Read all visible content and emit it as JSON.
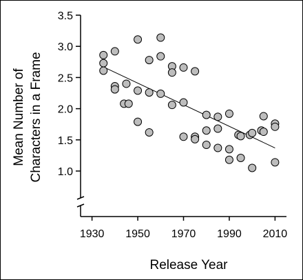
{
  "chart_data": {
    "type": "scatter",
    "title": "",
    "xlabel": "Release Year",
    "ylabel_lines": [
      "Mean Number of",
      "Characters in a Frame"
    ],
    "xlim": [
      1925,
      2015
    ],
    "ylim": [
      0.85,
      3.5
    ],
    "y_axis_break": true,
    "xticks": [
      "1930",
      "1950",
      "1970",
      "1990",
      "2010"
    ],
    "yticks": [
      "3.5",
      "3.0",
      "2.5",
      "2.0",
      "1.5",
      "1.0"
    ],
    "grid": false,
    "legend": "none",
    "marker_fill": "#bdbdbd",
    "marker_edge": "#000000",
    "points": [
      {
        "x": 1935,
        "y": 2.86
      },
      {
        "x": 1935,
        "y": 2.73
      },
      {
        "x": 1935,
        "y": 2.61
      },
      {
        "x": 1940,
        "y": 2.92
      },
      {
        "x": 1940,
        "y": 2.36
      },
      {
        "x": 1940,
        "y": 2.31
      },
      {
        "x": 1944,
        "y": 2.08
      },
      {
        "x": 1945,
        "y": 2.4
      },
      {
        "x": 1946,
        "y": 2.08
      },
      {
        "x": 1950,
        "y": 3.11
      },
      {
        "x": 1950,
        "y": 2.29
      },
      {
        "x": 1950,
        "y": 1.79
      },
      {
        "x": 1955,
        "y": 2.78
      },
      {
        "x": 1955,
        "y": 2.26
      },
      {
        "x": 1955,
        "y": 1.62
      },
      {
        "x": 1960,
        "y": 3.14
      },
      {
        "x": 1960,
        "y": 2.84
      },
      {
        "x": 1960,
        "y": 2.24
      },
      {
        "x": 1965,
        "y": 2.68
      },
      {
        "x": 1965,
        "y": 2.58
      },
      {
        "x": 1965,
        "y": 2.06
      },
      {
        "x": 1970,
        "y": 2.66
      },
      {
        "x": 1970,
        "y": 2.1
      },
      {
        "x": 1970,
        "y": 1.55
      },
      {
        "x": 1975,
        "y": 2.6
      },
      {
        "x": 1975,
        "y": 1.55
      },
      {
        "x": 1975,
        "y": 1.51
      },
      {
        "x": 1980,
        "y": 1.9
      },
      {
        "x": 1980,
        "y": 1.65
      },
      {
        "x": 1980,
        "y": 1.42
      },
      {
        "x": 1985,
        "y": 1.87
      },
      {
        "x": 1985,
        "y": 1.68
      },
      {
        "x": 1985,
        "y": 1.37
      },
      {
        "x": 1990,
        "y": 1.92
      },
      {
        "x": 1990,
        "y": 1.35
      },
      {
        "x": 1990,
        "y": 1.18
      },
      {
        "x": 1994,
        "y": 1.58
      },
      {
        "x": 1995,
        "y": 1.56
      },
      {
        "x": 1995,
        "y": 1.21
      },
      {
        "x": 1999,
        "y": 1.58
      },
      {
        "x": 2000,
        "y": 1.61
      },
      {
        "x": 2000,
        "y": 1.05
      },
      {
        "x": 2004,
        "y": 1.65
      },
      {
        "x": 2005,
        "y": 1.88
      },
      {
        "x": 2005,
        "y": 1.63
      },
      {
        "x": 2010,
        "y": 1.76
      },
      {
        "x": 2010,
        "y": 1.71
      },
      {
        "x": 2010,
        "y": 1.14
      }
    ],
    "trendline": {
      "x": [
        1935,
        2010
      ],
      "y": [
        2.67,
        1.37
      ]
    }
  }
}
